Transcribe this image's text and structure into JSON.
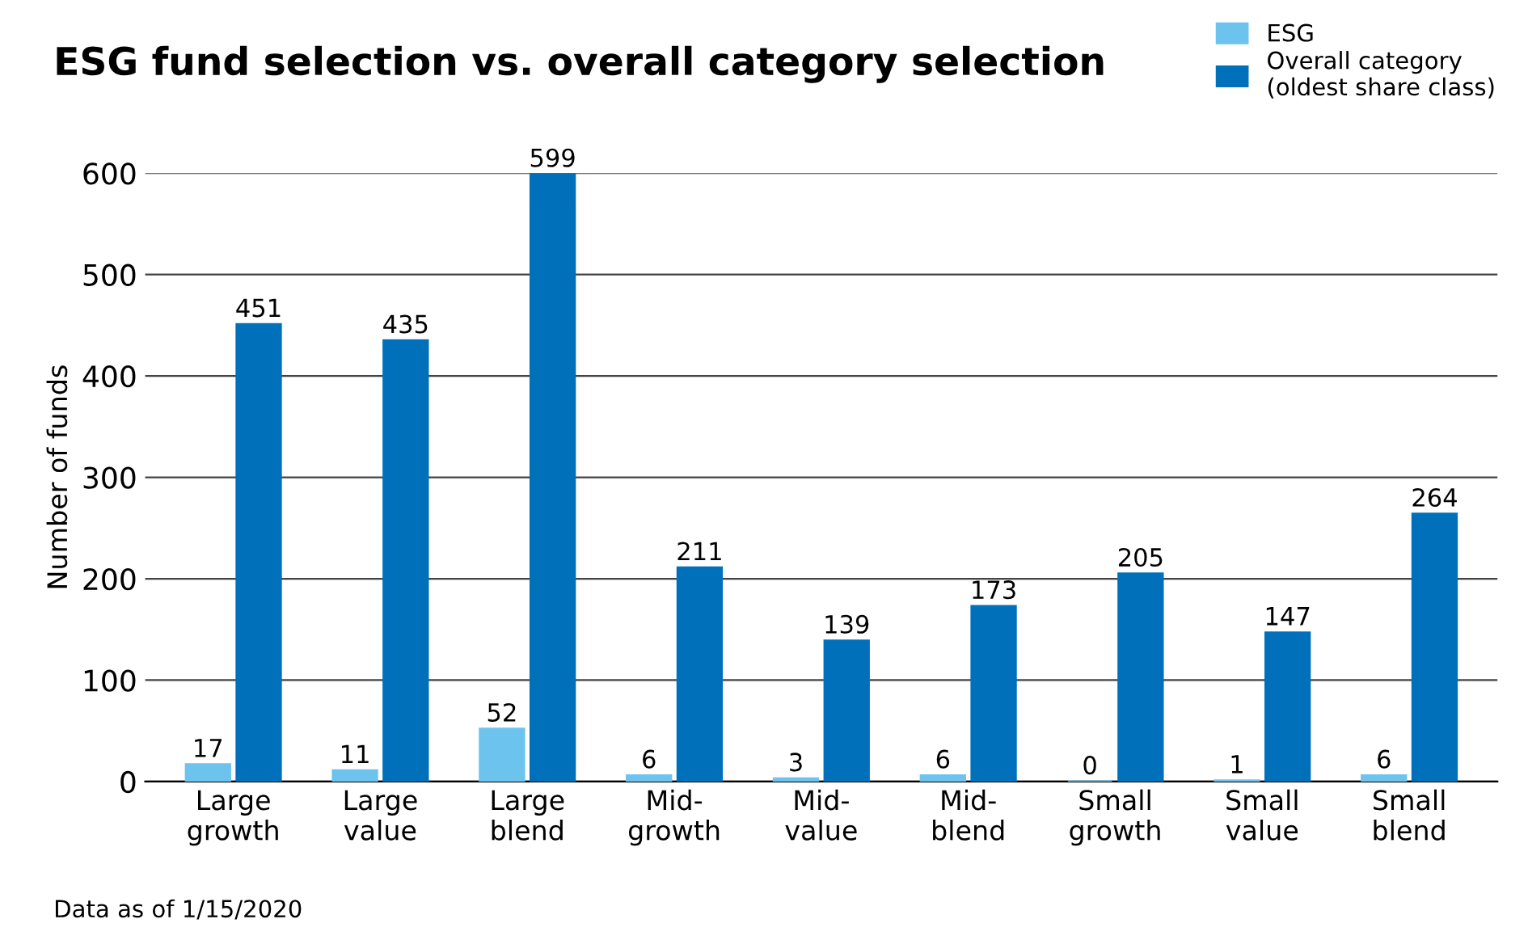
{
  "chart_data": {
    "type": "bar",
    "title": "ESG fund selection vs. overall category selection",
    "ylabel": "Number of funds",
    "categories": [
      "Large\ngrowth",
      "Large\nvalue",
      "Large\nblend",
      "Mid-\ngrowth",
      "Mid-\nvalue",
      "Mid-\nblend",
      "Small\ngrowth",
      "Small\nvalue",
      "Small\nblend"
    ],
    "series": [
      {
        "name": "ESG",
        "color": "#6cc4ee",
        "values": [
          17,
          11,
          52,
          6,
          3,
          6,
          0,
          1,
          6
        ]
      },
      {
        "name": "Overall category\n(oldest share class)",
        "color": "#0070bb",
        "values": [
          451,
          435,
          599,
          211,
          139,
          173,
          205,
          147,
          264
        ]
      }
    ],
    "ylim": [
      0,
      600
    ],
    "yticks": [
      0,
      100,
      200,
      300,
      400,
      500,
      600
    ],
    "grid": "y",
    "legend": "top right",
    "data_labels": true,
    "annotations": [
      "Data as of 1/15/2020"
    ]
  }
}
